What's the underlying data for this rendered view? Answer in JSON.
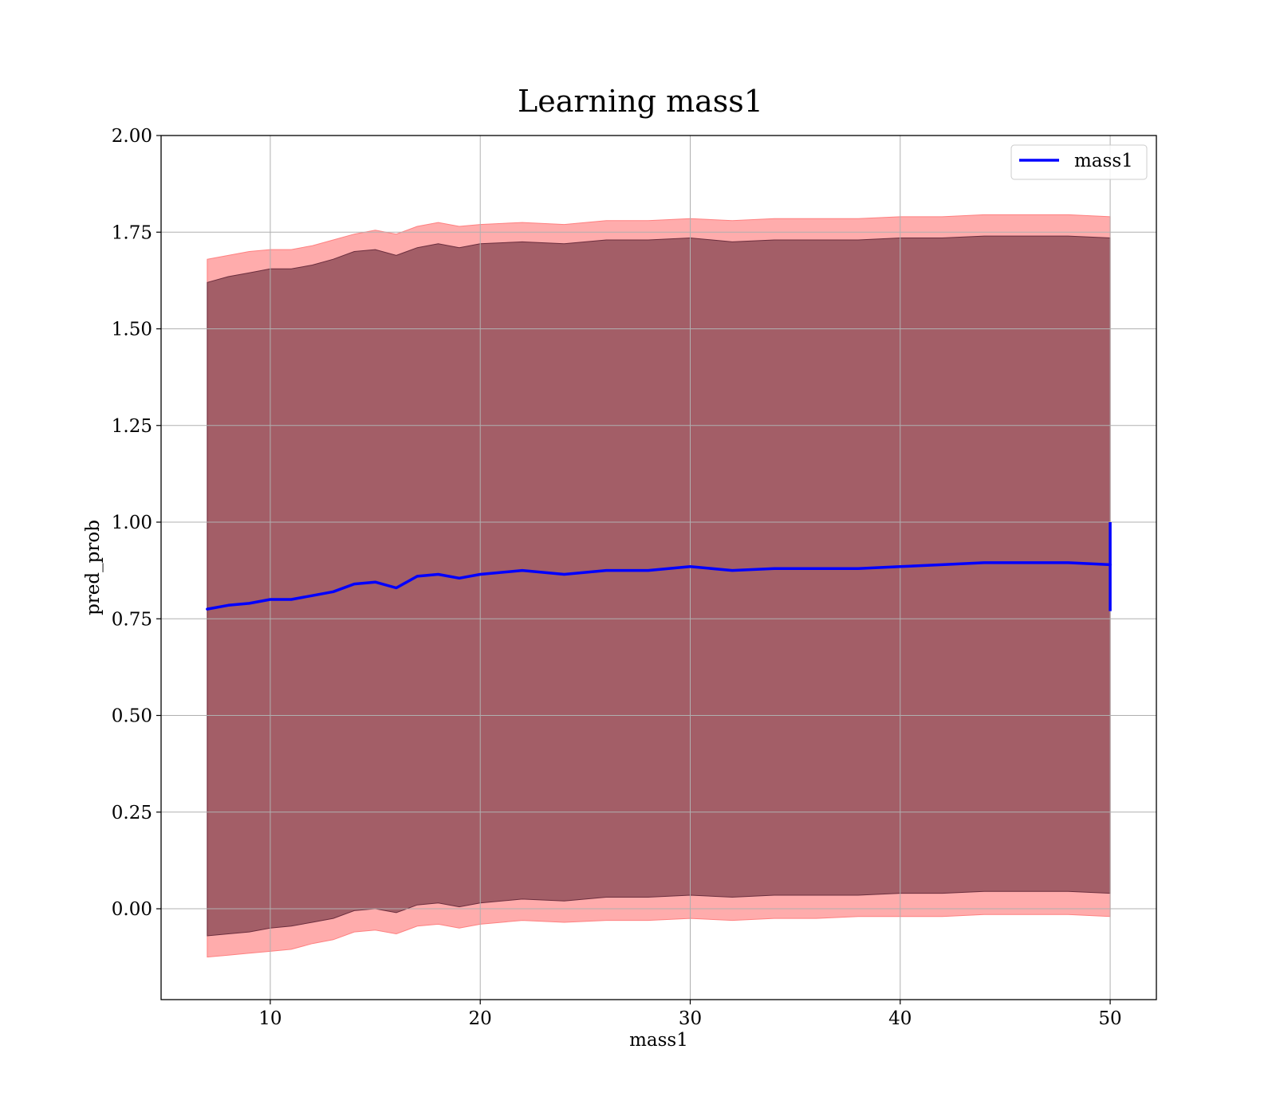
{
  "chart_data": {
    "type": "line",
    "title": "Learning mass1",
    "xlabel": "mass1",
    "ylabel": "pred_prob",
    "xlim": [
      4.8,
      52.2
    ],
    "ylim": [
      -0.235,
      2.0
    ],
    "xticks": [
      10,
      20,
      30,
      40,
      50
    ],
    "yticks": [
      0.0,
      0.25,
      0.5,
      0.75,
      1.0,
      1.25,
      1.5,
      1.75,
      2.0
    ],
    "xtick_labels": [
      "10",
      "20",
      "30",
      "40",
      "50"
    ],
    "ytick_labels": [
      "0.00",
      "0.25",
      "0.50",
      "0.75",
      "1.00",
      "1.25",
      "1.50",
      "1.75",
      "2.00"
    ],
    "grid": true,
    "legend_position": "top-right",
    "series": [
      {
        "name": "mass1",
        "color": "#0000ff",
        "x": [
          7,
          8,
          9,
          10,
          11,
          12,
          13,
          14,
          15,
          16,
          17,
          18,
          19,
          20,
          22,
          24,
          26,
          28,
          30,
          32,
          34,
          36,
          38,
          40,
          42,
          44,
          46,
          48,
          50
        ],
        "y": [
          0.775,
          0.785,
          0.79,
          0.8,
          0.8,
          0.81,
          0.82,
          0.84,
          0.845,
          0.83,
          0.86,
          0.865,
          0.855,
          0.865,
          0.875,
          0.865,
          0.875,
          0.875,
          0.885,
          0.875,
          0.88,
          0.88,
          0.88,
          0.885,
          0.89,
          0.895,
          0.895,
          0.895,
          0.89
        ],
        "end_spike": [
          0.77,
          1.0
        ]
      }
    ],
    "bands": [
      {
        "color": "#ff8080",
        "x": [
          7,
          8,
          9,
          10,
          11,
          12,
          13,
          14,
          15,
          16,
          17,
          18,
          19,
          20,
          22,
          24,
          26,
          28,
          30,
          32,
          34,
          36,
          38,
          40,
          42,
          44,
          46,
          48,
          50
        ],
        "upper": [
          1.68,
          1.69,
          1.7,
          1.705,
          1.705,
          1.715,
          1.73,
          1.745,
          1.755,
          1.745,
          1.765,
          1.775,
          1.765,
          1.77,
          1.775,
          1.77,
          1.78,
          1.78,
          1.785,
          1.78,
          1.785,
          1.785,
          1.785,
          1.79,
          1.79,
          1.795,
          1.795,
          1.795,
          1.79
        ],
        "lower": [
          -0.125,
          -0.12,
          -0.115,
          -0.11,
          -0.105,
          -0.09,
          -0.08,
          -0.06,
          -0.055,
          -0.065,
          -0.045,
          -0.04,
          -0.05,
          -0.04,
          -0.03,
          -0.035,
          -0.03,
          -0.03,
          -0.025,
          -0.03,
          -0.025,
          -0.025,
          -0.02,
          -0.02,
          -0.02,
          -0.015,
          -0.015,
          -0.015,
          -0.02
        ]
      },
      {
        "color": "#6b2e3e",
        "x": [
          7,
          8,
          9,
          10,
          11,
          12,
          13,
          14,
          15,
          16,
          17,
          18,
          19,
          20,
          22,
          24,
          26,
          28,
          30,
          32,
          34,
          36,
          38,
          40,
          42,
          44,
          46,
          48,
          50
        ],
        "upper": [
          1.62,
          1.635,
          1.645,
          1.655,
          1.655,
          1.665,
          1.68,
          1.7,
          1.705,
          1.69,
          1.71,
          1.72,
          1.71,
          1.72,
          1.725,
          1.72,
          1.73,
          1.73,
          1.735,
          1.725,
          1.73,
          1.73,
          1.73,
          1.735,
          1.735,
          1.74,
          1.74,
          1.74,
          1.735
        ],
        "lower": [
          -0.07,
          -0.065,
          -0.06,
          -0.05,
          -0.045,
          -0.035,
          -0.025,
          -0.005,
          0.0,
          -0.01,
          0.01,
          0.015,
          0.005,
          0.015,
          0.025,
          0.02,
          0.03,
          0.03,
          0.035,
          0.03,
          0.035,
          0.035,
          0.035,
          0.04,
          0.04,
          0.045,
          0.045,
          0.045,
          0.04
        ]
      }
    ]
  }
}
